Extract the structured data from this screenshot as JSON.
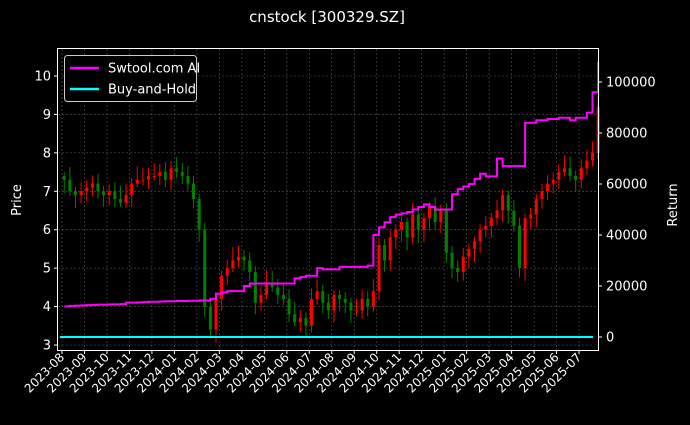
{
  "chart_data": {
    "type": "line",
    "title": "cnstock [300329.SZ]",
    "ylabel": "Price",
    "y2label": "Return",
    "ylim": [
      2.9,
      10.7
    ],
    "y2lim": [
      -4000,
      112000
    ],
    "yticks": [
      "3",
      "4",
      "5",
      "6",
      "7",
      "8",
      "9",
      "10"
    ],
    "y2ticks": [
      "0",
      "20000",
      "40000",
      "60000",
      "80000",
      "100000"
    ],
    "xticks": [
      "2023-08",
      "2023-09",
      "2023-10",
      "2023-11",
      "2023-12",
      "2024-01",
      "2024-02",
      "2024-03",
      "2024-04",
      "2024-05",
      "2024-06",
      "2024-07",
      "2024-08",
      "2024-09",
      "2024-10",
      "2024-11",
      "2024-12",
      "2025-01",
      "2025-02",
      "2025-03",
      "2025-04",
      "2025-05",
      "2025-06",
      "2025-07"
    ],
    "grid": true,
    "legend_position": "upper-left",
    "colors": {
      "up": "#ff0000",
      "down": "#008000",
      "strategy": "#ff00ff",
      "buyhold": "#00ffff",
      "background": "#000000"
    },
    "price_months": [
      "2023-08",
      "2023-09",
      "2023-10",
      "2023-11",
      "2023-12",
      "2024-01",
      "2024-02",
      "2024-03",
      "2024-04",
      "2024-05",
      "2024-06",
      "2024-07",
      "2024-08",
      "2024-09",
      "2024-10",
      "2024-11",
      "2024-12",
      "2025-01",
      "2025-02",
      "2025-03",
      "2025-04",
      "2025-05",
      "2025-06",
      "2025-07"
    ],
    "price_weekly_close": [
      [
        7.3,
        7.0,
        6.9,
        7.0
      ],
      [
        7.1,
        7.2,
        7.0,
        6.9
      ],
      [
        7.0,
        6.8,
        6.7,
        6.9
      ],
      [
        7.2,
        7.3,
        7.3,
        7.4
      ],
      [
        7.4,
        7.5,
        7.3,
        7.6
      ],
      [
        7.5,
        7.4,
        7.2,
        6.8
      ],
      [
        6.0,
        4.0,
        3.4,
        4.2
      ],
      [
        4.8,
        5.0,
        5.2,
        5.3
      ],
      [
        5.2,
        4.9,
        4.1,
        4.3
      ],
      [
        4.6,
        4.5,
        4.3,
        4.2
      ],
      [
        3.8,
        3.6,
        3.7,
        3.5
      ],
      [
        4.2,
        4.4,
        4.1,
        3.9
      ],
      [
        4.3,
        4.2,
        4.1,
        3.9
      ],
      [
        3.9,
        4.2,
        4.0,
        4.4
      ],
      [
        5.6,
        5.2,
        5.8,
        6.0
      ],
      [
        6.2,
        5.8,
        6.4,
        6.0
      ],
      [
        6.3,
        6.6,
        6.2,
        6.5
      ],
      [
        5.4,
        5.0,
        4.9,
        5.3
      ],
      [
        5.5,
        5.7,
        6.0,
        6.1
      ],
      [
        6.3,
        6.5,
        6.9,
        6.5
      ],
      [
        6.1,
        5.0,
        6.3,
        6.4
      ],
      [
        6.8,
        7.0,
        7.2,
        7.3
      ],
      [
        7.5,
        7.6,
        7.4,
        7.3
      ],
      [
        7.6,
        7.8,
        8.0,
        9.2
      ]
    ],
    "series": [
      {
        "name": "Swtool.com AI",
        "values": [
          [
            12000,
            12200,
            12300,
            12400
          ],
          [
            12500,
            12600,
            12700,
            12700
          ],
          [
            12800,
            12800,
            12900,
            13500
          ],
          [
            13500,
            13600,
            13700,
            13800
          ],
          [
            13800,
            13900,
            14000,
            14000
          ],
          [
            14100,
            14100,
            14200,
            14200
          ],
          [
            14300,
            14300,
            15000,
            17000
          ],
          [
            17500,
            18000,
            18000,
            18000
          ],
          [
            20000,
            21000,
            21000,
            21000
          ],
          [
            21000,
            21000,
            21000,
            21000
          ],
          [
            21000,
            23000,
            23500,
            24000
          ],
          [
            24000,
            27000,
            26500,
            26500
          ],
          [
            26500,
            27500,
            27500,
            27500
          ],
          [
            27500,
            27500,
            28000,
            40000
          ],
          [
            43000,
            45000,
            47000,
            48000
          ],
          [
            48500,
            49000,
            50000,
            51000
          ],
          [
            52000,
            51000,
            50000,
            50000
          ],
          [
            50000,
            56000,
            58000,
            59000
          ],
          [
            60000,
            62000,
            64000,
            63000
          ],
          [
            63000,
            70000,
            67000,
            67000
          ],
          [
            67000,
            67000,
            84000,
            84000
          ],
          [
            85000,
            85000,
            85500,
            85500
          ],
          [
            86000,
            86000,
            85000,
            86000
          ],
          [
            86000,
            88000,
            96000,
            108000
          ]
        ]
      },
      {
        "name": "Buy-and-Hold",
        "values": [
          0,
          0
        ]
      }
    ]
  }
}
